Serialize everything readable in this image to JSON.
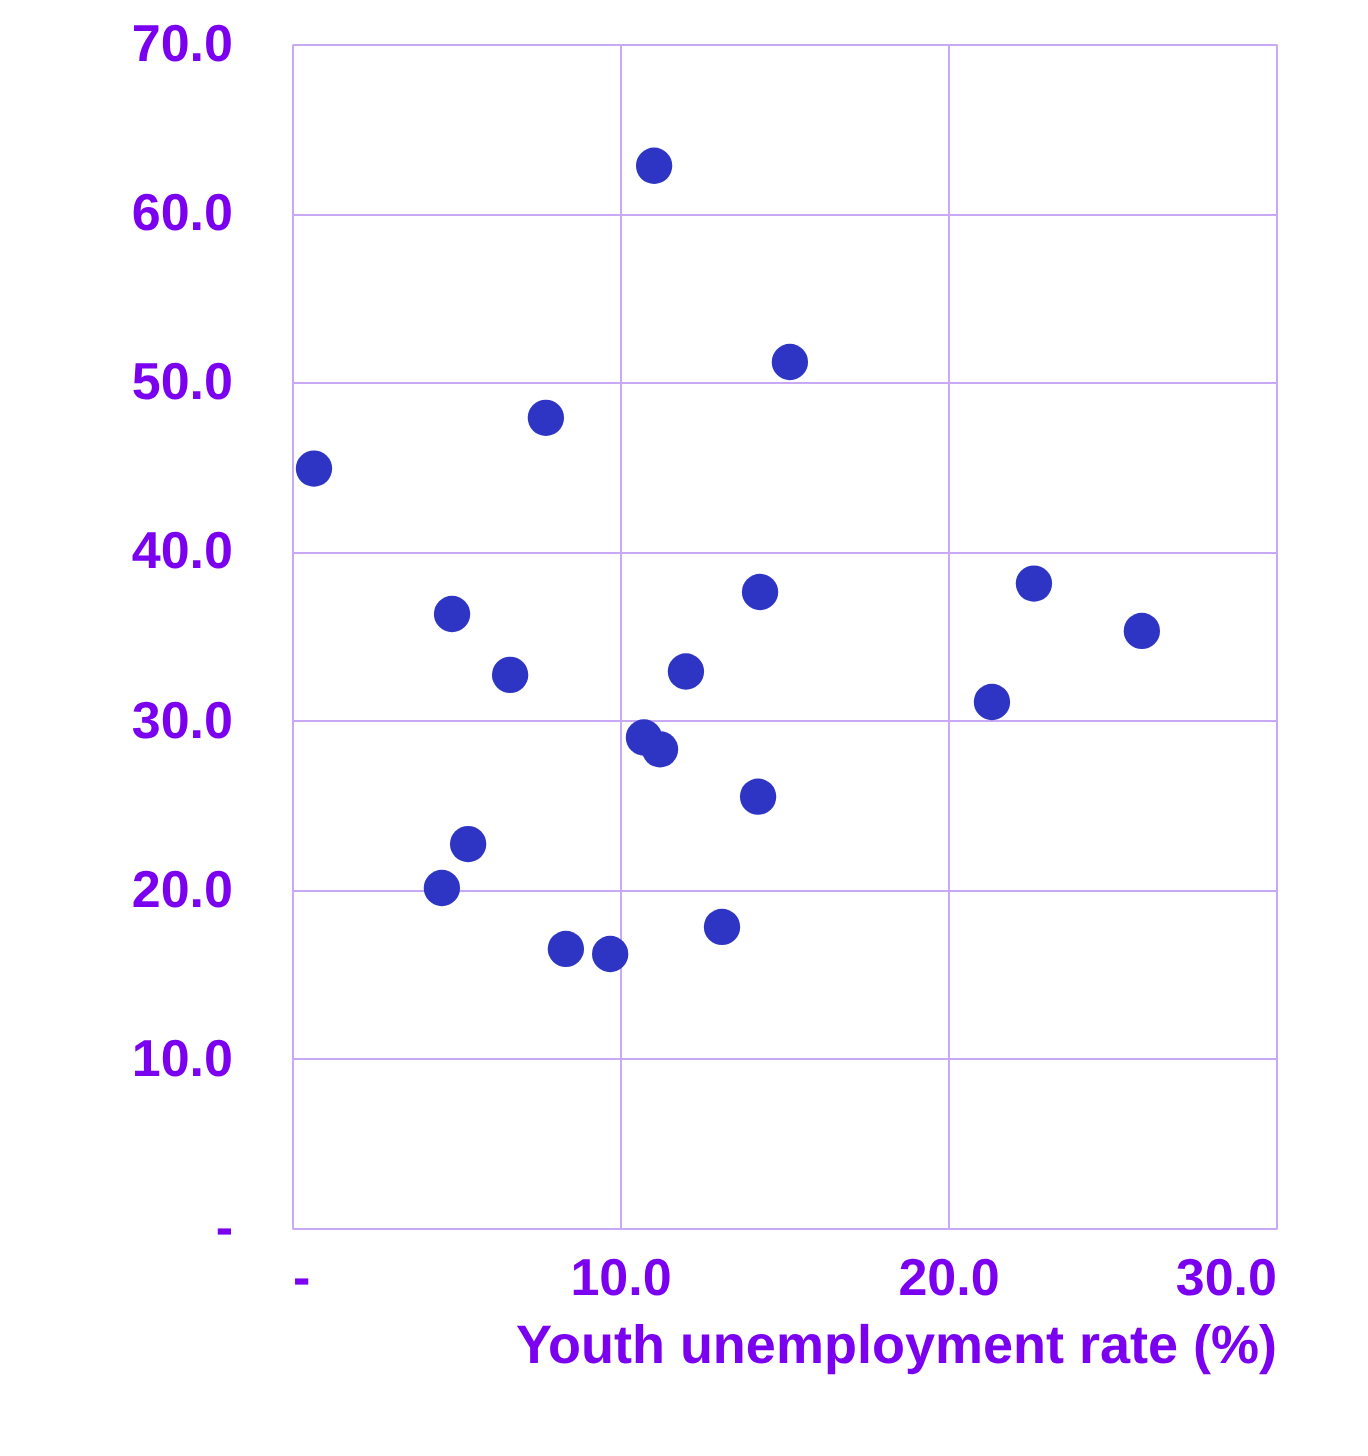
{
  "chart_data": {
    "type": "scatter",
    "xlabel": "Youth unemployment rate (%)",
    "x": [
      0.67,
      11.04,
      15.18,
      7.74,
      4.88,
      6.65,
      14.27,
      12.01,
      10.73,
      11.22,
      14.21,
      5.37,
      4.57,
      8.35,
      9.7,
      13.11,
      21.34,
      22.62,
      25.91
    ],
    "series": [
      {
        "color": "#2e35c4",
        "values": [
          44.9,
          62.8,
          51.2,
          47.9,
          36.3,
          32.7,
          37.6,
          32.9,
          29.0,
          28.3,
          25.5,
          22.7,
          20.1,
          16.5,
          16.2,
          17.8,
          31.1,
          38.1,
          35.3
        ]
      }
    ],
    "xlim": [
      0,
      30
    ],
    "ylim": [
      0,
      70
    ],
    "xticks": [
      {
        "value": 0,
        "label": "-"
      },
      {
        "value": 10,
        "label": "10.0"
      },
      {
        "value": 20,
        "label": "20.0"
      },
      {
        "value": 30,
        "label": "30.0"
      }
    ],
    "yticks": [
      {
        "value": 0,
        "label": "-"
      },
      {
        "value": 10,
        "label": "10.0"
      },
      {
        "value": 20,
        "label": "20.0"
      },
      {
        "value": 30,
        "label": "30.0"
      },
      {
        "value": 40,
        "label": "40.0"
      },
      {
        "value": 50,
        "label": "50.0"
      },
      {
        "value": 60,
        "label": "60.0"
      },
      {
        "value": 70,
        "label": "70.0"
      }
    ],
    "grid": true,
    "marker": "circle"
  }
}
